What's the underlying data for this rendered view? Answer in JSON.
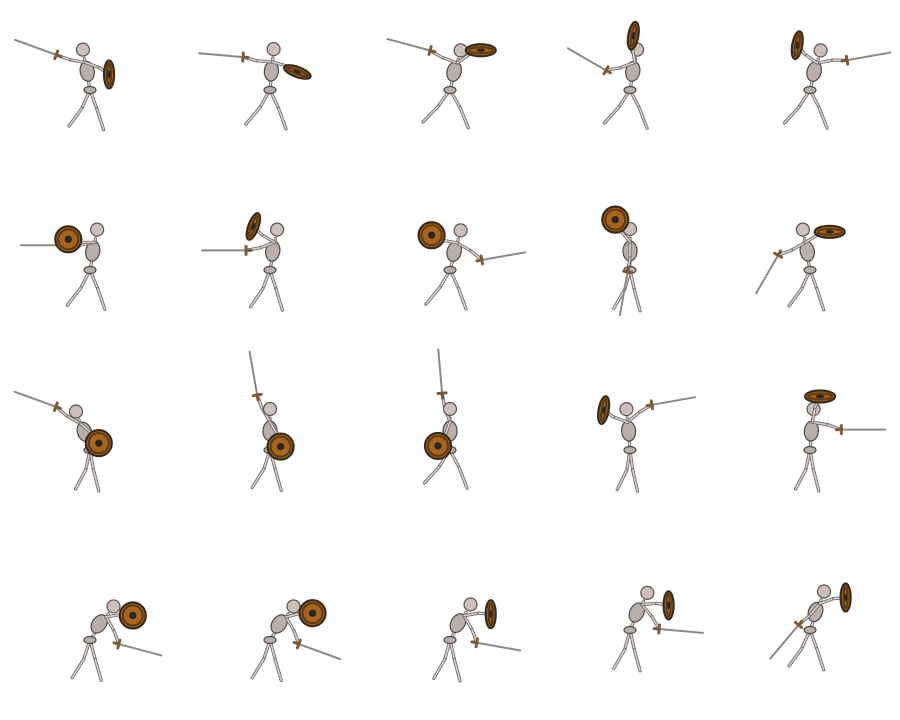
{
  "sprite_sheet": {
    "subject": "skeleton-warrior",
    "columns": 5,
    "rows": 4,
    "colors": {
      "background": "#ffffff",
      "bone": "#cdbfbb",
      "bone_outline": "#5a5352",
      "shield_wood": "#a8641c",
      "shield_boss": "#2b2420",
      "sword": "#8e8884"
    },
    "frames": [
      {
        "row": 0,
        "col": 0,
        "pose": "guard",
        "shield": "side",
        "shield_angle": -80,
        "sword_angle": 200,
        "shield_arm": 20,
        "sword_arm": 190,
        "lean": -10,
        "stride": 40
      },
      {
        "row": 0,
        "col": 1,
        "pose": "lunge",
        "shield": "side",
        "shield_angle": 30,
        "sword_angle": 185,
        "shield_arm": 15,
        "sword_arm": 185,
        "lean": 5,
        "stride": 50
      },
      {
        "row": 0,
        "col": 2,
        "pose": "leap",
        "shield": "top",
        "shield_angle": -10,
        "sword_angle": 195,
        "shield_arm": -35,
        "sword_arm": 200,
        "lean": 15,
        "stride": 60
      },
      {
        "row": 0,
        "col": 3,
        "pose": "leap",
        "shield": "side",
        "shield_angle": -70,
        "sword_angle": 210,
        "shield_arm": -100,
        "sword_arm": 160,
        "lean": 10,
        "stride": 55
      },
      {
        "row": 0,
        "col": 4,
        "pose": "thrust",
        "shield": "side",
        "shield_angle": -70,
        "sword_angle": -10,
        "shield_arm": -145,
        "sword_arm": -10,
        "lean": 15,
        "stride": 55
      },
      {
        "row": 1,
        "col": 0,
        "pose": "guard",
        "shield": "face",
        "shield_angle": 0,
        "sword_angle": 180,
        "shield_arm": 180,
        "sword_arm": 170,
        "lean": 10,
        "stride": 45
      },
      {
        "row": 1,
        "col": 1,
        "pose": "hop",
        "shield": "side",
        "shield_angle": -60,
        "sword_angle": 180,
        "shield_arm": -150,
        "sword_arm": 160,
        "lean": 10,
        "stride": 35
      },
      {
        "row": 1,
        "col": 2,
        "pose": "swing",
        "shield": "face",
        "shield_angle": 0,
        "sword_angle": -10,
        "shield_arm": 190,
        "sword_arm": 30,
        "lean": 15,
        "stride": 50
      },
      {
        "row": 1,
        "col": 3,
        "pose": "raise",
        "shield": "face",
        "shield_angle": 0,
        "sword_angle": 100,
        "shield_arm": -130,
        "sword_arm": 90,
        "lean": 0,
        "stride": 25
      },
      {
        "row": 1,
        "col": 4,
        "pose": "overhead",
        "shield": "top",
        "shield_angle": -10,
        "sword_angle": 120,
        "shield_arm": -30,
        "sword_arm": 150,
        "lean": -10,
        "stride": 40
      },
      {
        "row": 2,
        "col": 0,
        "pose": "crouch",
        "shield": "face",
        "shield_angle": 0,
        "sword_angle": -160,
        "shield_arm": 40,
        "sword_arm": -150,
        "lean": -20,
        "stride": 20
      },
      {
        "row": 2,
        "col": 1,
        "pose": "block",
        "shield": "face",
        "shield_angle": 0,
        "sword_angle": -100,
        "shield_arm": 60,
        "sword_arm": -120,
        "lean": 0,
        "stride": 30
      },
      {
        "row": 2,
        "col": 2,
        "pose": "block",
        "shield": "face",
        "shield_angle": 0,
        "sword_angle": -95,
        "shield_arm": 110,
        "sword_arm": -110,
        "lean": 0,
        "stride": 55
      },
      {
        "row": 2,
        "col": 3,
        "pose": "overhead",
        "shield": "side",
        "shield_angle": -70,
        "sword_angle": -10,
        "shield_arm": -160,
        "sword_arm": -40,
        "lean": -5,
        "stride": 15
      },
      {
        "row": 2,
        "col": 4,
        "pose": "thrust",
        "shield": "top",
        "shield_angle": -10,
        "sword_angle": 0,
        "shield_arm": -80,
        "sword_arm": 10,
        "lean": 5,
        "stride": 20
      },
      {
        "row": 3,
        "col": 0,
        "pose": "cower",
        "shield": "face",
        "shield_angle": 0,
        "sword_angle": 15,
        "shield_arm": -10,
        "sword_arm": 60,
        "lean": 35,
        "stride": 30
      },
      {
        "row": 3,
        "col": 1,
        "pose": "cower",
        "shield": "face",
        "shield_angle": 0,
        "sword_angle": 20,
        "shield_arm": -15,
        "sword_arm": 60,
        "lean": 35,
        "stride": 30
      },
      {
        "row": 3,
        "col": 2,
        "pose": "cower",
        "shield": "side",
        "shield_angle": -80,
        "sword_angle": 10,
        "shield_arm": -10,
        "sword_arm": 60,
        "lean": 30,
        "stride": 25
      },
      {
        "row": 3,
        "col": 3,
        "pose": "cower",
        "shield": "side",
        "shield_angle": -80,
        "sword_angle": 5,
        "shield_arm": -5,
        "sword_arm": 50,
        "lean": 25,
        "stride": 25
      },
      {
        "row": 3,
        "col": 4,
        "pose": "crouch-guard",
        "shield": "side",
        "shield_angle": -80,
        "sword_angle": 130,
        "shield_arm": -20,
        "sword_arm": 130,
        "lean": 20,
        "stride": 40
      }
    ]
  }
}
